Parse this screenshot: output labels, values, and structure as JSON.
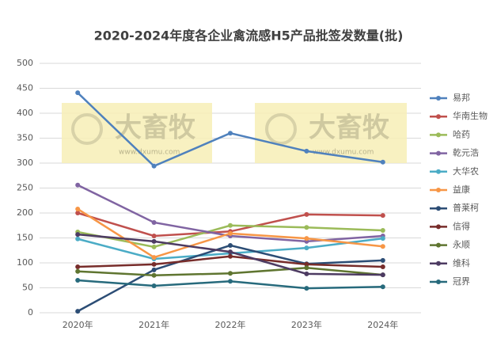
{
  "chart_data": {
    "type": "line",
    "title": "2020-2024年度各企业禽流感H5产品批签发数量(批)",
    "categories": [
      "2020年",
      "2021年",
      "2022年",
      "2023年",
      "2024年"
    ],
    "series": [
      {
        "name": "易邦",
        "color": "#4f81bd",
        "values": [
          441,
          294,
          360,
          324,
          302
        ]
      },
      {
        "name": "华南生物",
        "color": "#c0504d",
        "values": [
          200,
          154,
          163,
          197,
          195
        ]
      },
      {
        "name": "哈药",
        "color": "#9bbb59",
        "values": [
          162,
          132,
          175,
          171,
          165
        ]
      },
      {
        "name": "乾元浩",
        "color": "#8064a2",
        "values": [
          256,
          181,
          154,
          143,
          154
        ]
      },
      {
        "name": "大华农",
        "color": "#4bacc6",
        "values": [
          148,
          108,
          119,
          130,
          149
        ]
      },
      {
        "name": "益康",
        "color": "#f79646",
        "values": [
          208,
          111,
          159,
          149,
          133
        ]
      },
      {
        "name": "普莱柯",
        "color": "#2c4d75",
        "values": [
          3,
          86,
          135,
          98,
          105
        ]
      },
      {
        "name": "信得",
        "color": "#772c2a",
        "values": [
          92,
          97,
          113,
          97,
          92
        ]
      },
      {
        "name": "永顺",
        "color": "#5f7530",
        "values": [
          83,
          75,
          79,
          90,
          76
        ]
      },
      {
        "name": "维科",
        "color": "#4d3b62",
        "values": [
          157,
          143,
          122,
          78,
          76
        ]
      },
      {
        "name": "冠界",
        "color": "#276a7c",
        "values": [
          65,
          54,
          63,
          49,
          52
        ]
      }
    ],
    "ylim": [
      0,
      500
    ],
    "yticks": [
      0,
      50,
      100,
      150,
      200,
      250,
      300,
      350,
      400,
      450,
      500
    ],
    "grid": true,
    "legend": "right",
    "watermark": {
      "brand": "大畜牧",
      "url": "www.dxumu.com"
    }
  }
}
